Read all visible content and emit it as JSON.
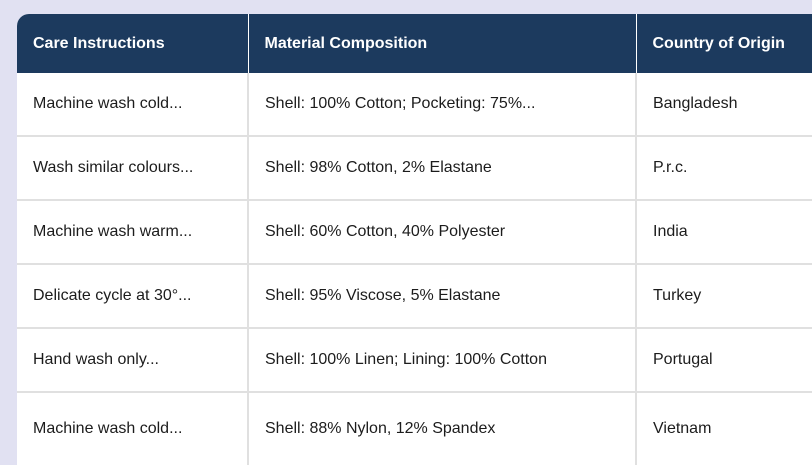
{
  "page": {
    "background_color": "#e1e1f2"
  },
  "table": {
    "header_bg_color": "#1c3a5e",
    "header_text_color": "#ffffff",
    "row_bg_color": "#ffffff",
    "row_border_color": "#e0e0e0",
    "body_text_color": "#1c1c1c",
    "columns": [
      {
        "label": "Care Instructions"
      },
      {
        "label": "Material Composition"
      },
      {
        "label": "Country of Origin"
      }
    ],
    "rows": [
      {
        "care": "Machine wash cold...",
        "material": "Shell: 100% Cotton; Pocketing: 75%...",
        "origin": "Bangladesh"
      },
      {
        "care": "Wash similar colours...",
        "material": "Shell: 98% Cotton, 2% Elastane",
        "origin": "P.r.c."
      },
      {
        "care": "Machine wash warm...",
        "material": "Shell: 60% Cotton, 40% Polyester",
        "origin": "India"
      },
      {
        "care": "Delicate cycle at 30°...",
        "material": "Shell: 95% Viscose, 5% Elastane",
        "origin": "Turkey"
      },
      {
        "care": "Hand wash only...",
        "material": "Shell: 100% Linen; Lining: 100% Cotton",
        "origin": "Portugal"
      },
      {
        "care": "Machine wash cold...",
        "material": "Shell: 88% Nylon, 12% Spandex",
        "origin": "Vietnam"
      }
    ]
  }
}
